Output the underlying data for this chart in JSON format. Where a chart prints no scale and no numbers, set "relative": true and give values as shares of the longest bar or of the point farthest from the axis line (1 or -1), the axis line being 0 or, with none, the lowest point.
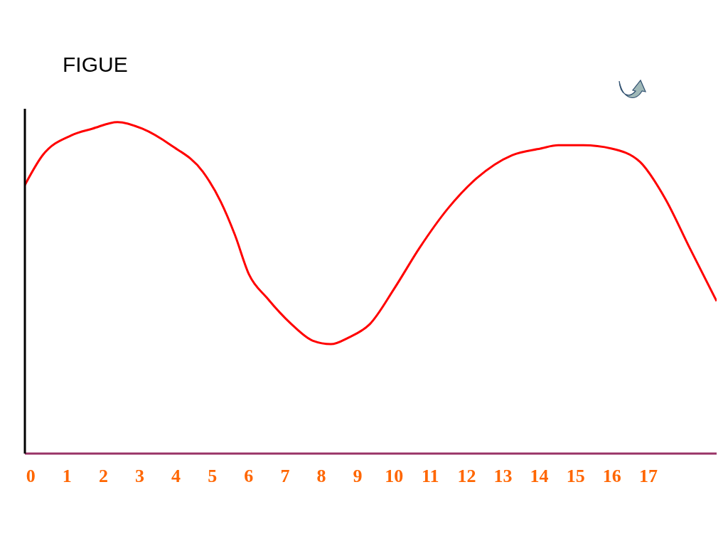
{
  "chart_data": {
    "type": "line",
    "title": "FIGUE",
    "relative": true,
    "x": [
      -0.16,
      0.33,
      1.12,
      1.7,
      2.39,
      3.07,
      3.86,
      4.74,
      5.23,
      5.62,
      6.01,
      6.5,
      7.18,
      7.77,
      8.26,
      8.75,
      9.33,
      10.02,
      10.7,
      11.49,
      12.27,
      13.25,
      14.03,
      14.52,
      15.21,
      15.99,
      16.77,
      17.46,
      18.14,
      18.88
    ],
    "series": [
      {
        "color": "#ff0000",
        "values": [
          0.81,
          0.9,
          0.96,
          0.98,
          1,
          0.98,
          0.93,
          0.85,
          0.76,
          0.66,
          0.54,
          0.47,
          0.39,
          0.34,
          0.33,
          0.35,
          0.39,
          0.5,
          0.62,
          0.74,
          0.83,
          0.9,
          0.92,
          0.93,
          0.93,
          0.92,
          0.88,
          0.77,
          0.62,
          0.46
        ]
      }
    ],
    "xlim": [
      -0.16,
      18.88
    ],
    "xticks": [
      0,
      1,
      2,
      3,
      4,
      5,
      6,
      7,
      8,
      9,
      10,
      11,
      12,
      13,
      14,
      15,
      16,
      17
    ],
    "grid": false
  }
}
